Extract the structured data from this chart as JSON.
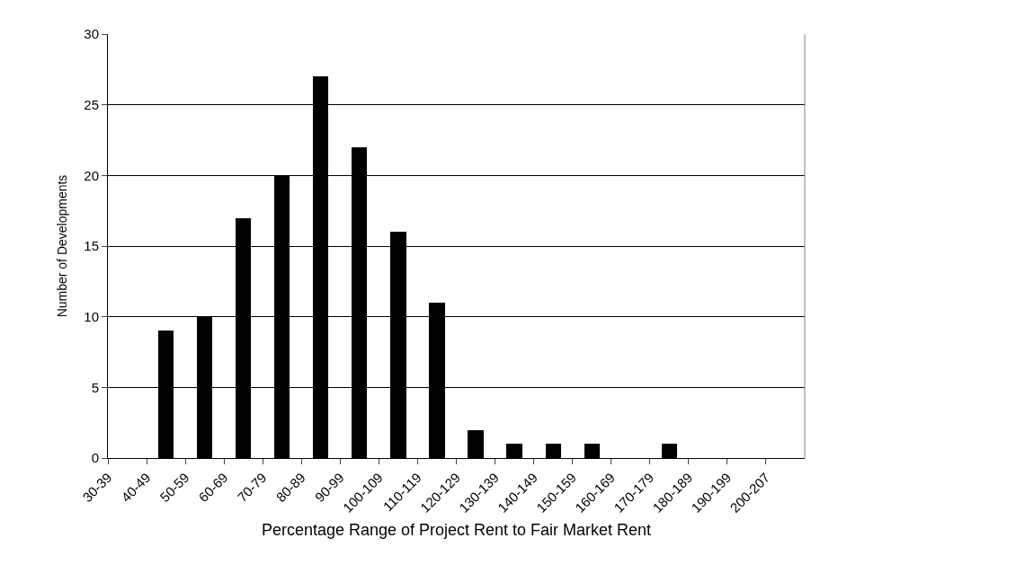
{
  "chart_data": {
    "type": "bar",
    "xlabel": "Percentage Range of Project Rent to Fair Market Rent",
    "ylabel": "Number of Developments",
    "categories": [
      "30-39",
      "40-49",
      "50-59",
      "60-69",
      "70-79",
      "80-89",
      "90-99",
      "100-109",
      "110-119",
      "120-129",
      "130-139",
      "140-149",
      "150-159",
      "160-169",
      "170-179",
      "180-189",
      "190-199",
      "200-207"
    ],
    "values": [
      0,
      9,
      10,
      17,
      20,
      27,
      22,
      16,
      11,
      2,
      1,
      1,
      1,
      0,
      1,
      0,
      0,
      0
    ],
    "color": "#000000",
    "ylim": [
      0,
      30
    ],
    "yticks": [
      0,
      5,
      10,
      15,
      20,
      25,
      30
    ],
    "grid": "y",
    "legend": false
  }
}
